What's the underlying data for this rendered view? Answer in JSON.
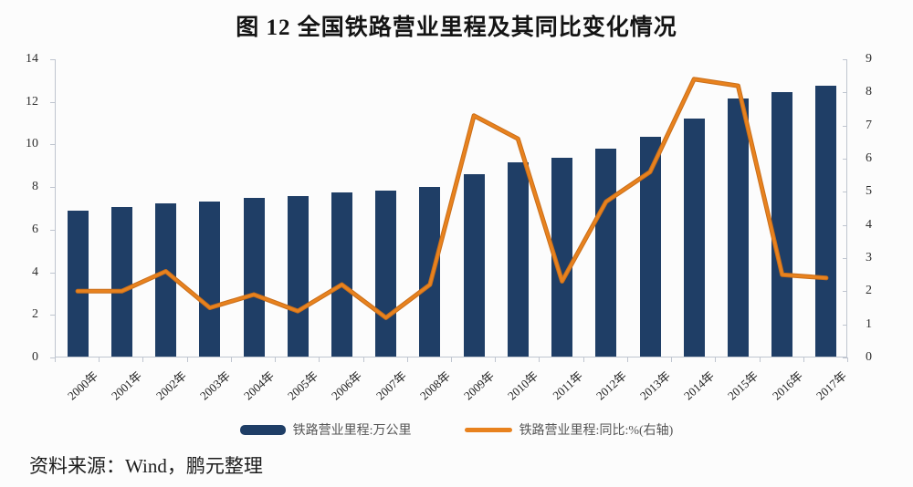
{
  "title": "图 12   全国铁路营业里程及其同比变化情况",
  "source": "资料来源：Wind，鹏元整理",
  "colors": {
    "bar": "#1f3e66",
    "line": "#e8821e",
    "line_edge": "#c96e1a",
    "axis": "#bfc5cf",
    "title_text": "#141414",
    "tick_text": "#2e2e2e",
    "legend_text": "#555555",
    "background": "#fcfcfc"
  },
  "chart_data": {
    "type": "bar+line combo",
    "title": "图 12   全国铁路营业里程及其同比变化情况",
    "categories": [
      "2000年",
      "2001年",
      "2002年",
      "2003年",
      "2004年",
      "2005年",
      "2006年",
      "2007年",
      "2008年",
      "2009年",
      "2010年",
      "2011年",
      "2012年",
      "2013年",
      "2014年",
      "2015年",
      "2016年",
      "2017年"
    ],
    "series": [
      {
        "name": "铁路营业里程:万公里",
        "type": "bar",
        "axis": "left",
        "values": [
          6.87,
          7.01,
          7.19,
          7.3,
          7.44,
          7.54,
          7.71,
          7.8,
          7.97,
          8.55,
          9.12,
          9.32,
          9.76,
          10.31,
          11.18,
          12.1,
          12.4,
          12.7
        ]
      },
      {
        "name": "铁路营业里程:同比:%(右轴)",
        "type": "line",
        "axis": "right",
        "values": [
          2.0,
          2.0,
          2.6,
          1.5,
          1.9,
          1.4,
          2.2,
          1.2,
          2.2,
          7.3,
          6.6,
          2.3,
          4.7,
          5.6,
          8.4,
          8.2,
          2.5,
          2.4
        ]
      }
    ],
    "left_axis": {
      "min": 0,
      "max": 14,
      "ticks": [
        0,
        2,
        4,
        6,
        8,
        10,
        12,
        14
      ]
    },
    "right_axis": {
      "min": 0,
      "max": 9,
      "ticks": [
        0,
        1,
        2,
        3,
        4,
        5,
        6,
        7,
        8,
        9
      ]
    },
    "grid": false,
    "legend_position": "bottom"
  }
}
